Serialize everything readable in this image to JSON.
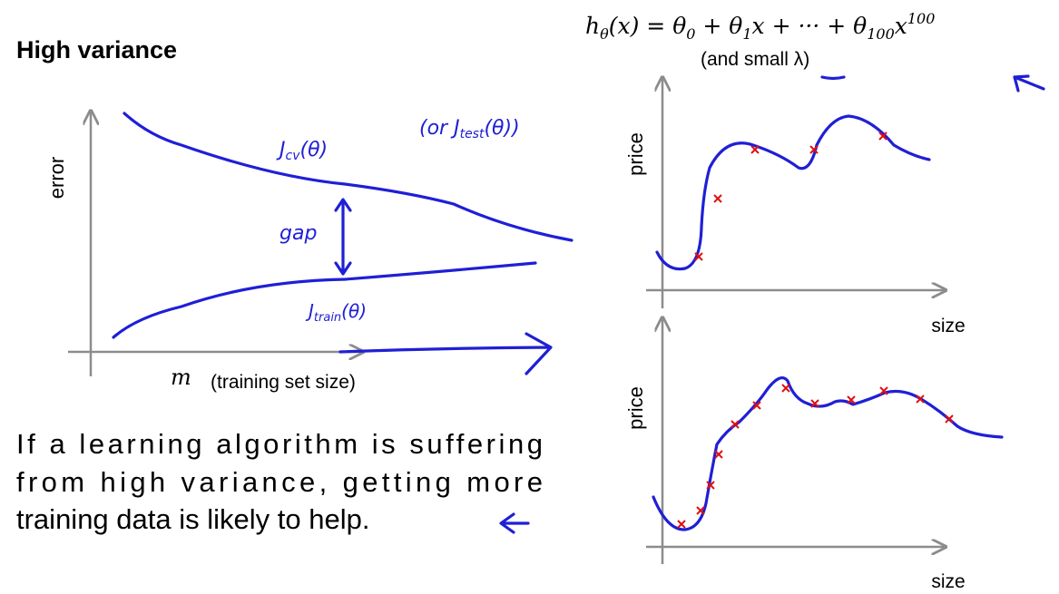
{
  "slide": {
    "title": "High variance",
    "formula": [
      "h",
      "θ",
      "(x) = θ",
      "0",
      " + θ",
      "1",
      "x + ··· + θ",
      "100",
      "x",
      "100"
    ],
    "formula_note": "(and small λ)",
    "left_plot": {
      "y_label": "error",
      "x_label_symbol": "m",
      "x_label": "(training set size)",
      "annotations": {
        "cv": "J",
        "cv_sub": "cv",
        "cv_arg": "(θ)",
        "test": "(or J",
        "test_sub": "test",
        "test_arg": "(θ))",
        "gap": "gap",
        "train": "J",
        "train_sub": "train",
        "train_arg": "(θ)"
      }
    },
    "right_plots": [
      {
        "y_label": "price",
        "x_label": "size"
      },
      {
        "y_label": "price",
        "x_label": "size"
      }
    ],
    "paragraph": [
      "If a learning algorithm is suffering",
      "from high variance, getting more",
      "training data is likely to help."
    ]
  }
}
